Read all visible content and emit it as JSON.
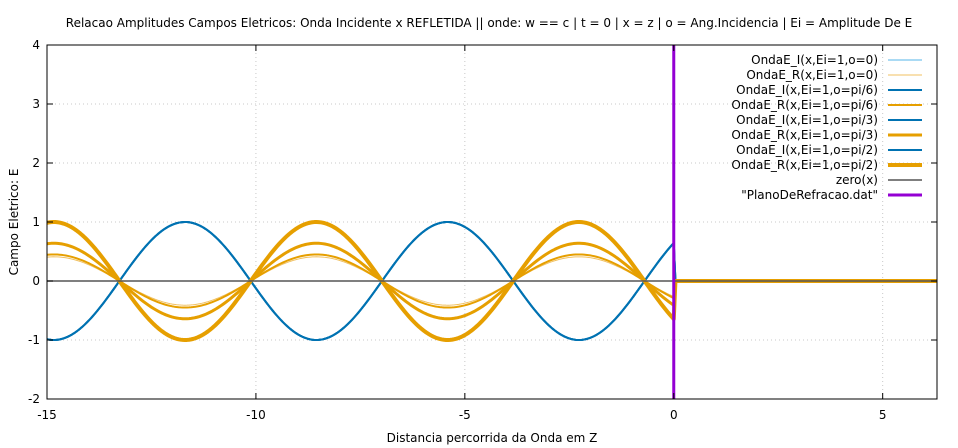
{
  "chart_data": {
    "type": "line",
    "title": "Relacao Amplitudes Campos Eletricos: Onda Incidente x REFLETIDA || onde: w == c | t = 0 | x = z | o = Ang.Incidencia | Ei = Amplitude De E",
    "xlabel": "Distancia percorrida da Onda em Z",
    "ylabel": "Campo Eletrico: E",
    "xlim": [
      -15,
      6.3
    ],
    "ylim": [
      -2,
      4
    ],
    "xticks": [
      -15,
      -10,
      -5,
      0,
      5
    ],
    "yticks": [
      -2,
      -1,
      0,
      1,
      2,
      3,
      4
    ],
    "grid": true,
    "legend_position": "top-right",
    "wave_period": 6.2832,
    "series": [
      {
        "name": "OndaE_I(x,Ei=1,o=0)",
        "kind": "incident",
        "amplitude": 1,
        "color": "#56b4e9",
        "width": 1
      },
      {
        "name": "OndaE_R(x,Ei=1,o=0)",
        "kind": "reflected",
        "amplitude": 0.41,
        "color": "#f0c060",
        "width": 1
      },
      {
        "name": "OndaE_I(x,Ei=1,o=pi/6)",
        "kind": "incident",
        "amplitude": 1,
        "color": "#0072b2",
        "width": 2
      },
      {
        "name": "OndaE_R(x,Ei=1,o=pi/6)",
        "kind": "reflected",
        "amplitude": 0.45,
        "color": "#e69f00",
        "width": 2
      },
      {
        "name": "OndaE_I(x,Ei=1,o=pi/3)",
        "kind": "incident",
        "amplitude": 1,
        "color": "#0072b2",
        "width": 2
      },
      {
        "name": "OndaE_R(x,Ei=1,o=pi/3)",
        "kind": "reflected",
        "amplitude": 0.64,
        "color": "#e69f00",
        "width": 3
      },
      {
        "name": "OndaE_I(x,Ei=1,o=pi/2)",
        "kind": "incident",
        "amplitude": 1,
        "color": "#0072b2",
        "width": 2
      },
      {
        "name": "OndaE_R(x,Ei=1,o=pi/2)",
        "kind": "reflected",
        "amplitude": 1,
        "color": "#e69f00",
        "width": 4
      },
      {
        "name": "zero(x)",
        "kind": "zero",
        "color": "#555555",
        "width": 1.5
      },
      {
        "name": "\"PlanoDeRefracao.dat\"",
        "kind": "plane",
        "x": 0,
        "color": "#9400d3",
        "width": 3
      }
    ]
  }
}
